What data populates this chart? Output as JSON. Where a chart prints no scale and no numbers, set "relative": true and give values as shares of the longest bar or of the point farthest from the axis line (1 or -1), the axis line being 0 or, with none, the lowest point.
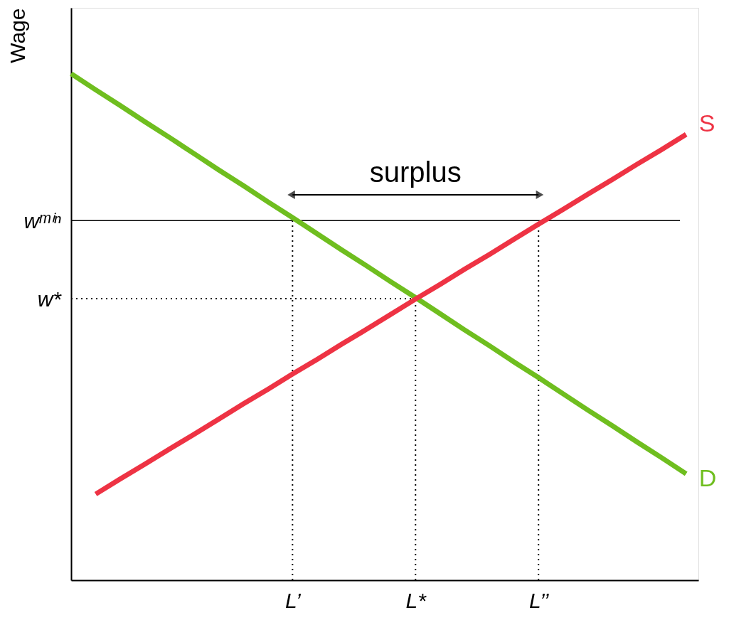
{
  "chart_data": {
    "type": "line",
    "ylabel": "Wage",
    "relative": true,
    "categories": [
      null,
      null,
      null,
      null,
      null,
      null,
      null,
      null,
      null,
      "L’",
      null,
      null,
      null,
      null,
      "L*",
      null,
      null,
      null,
      null,
      "L’’",
      null,
      null,
      null,
      null,
      null,
      null
    ],
    "series": [
      {
        "name": "D",
        "color": "#6fbe1f",
        "line_style": "solid",
        "values": [
          1.0,
          0.968,
          0.937,
          0.905,
          0.874,
          0.842,
          0.81,
          0.779,
          0.747,
          0.716,
          0.684,
          0.652,
          0.621,
          0.589,
          0.558,
          0.526,
          0.494,
          0.463,
          0.431,
          0.4,
          0.368,
          0.336,
          0.305,
          0.273,
          0.242,
          0.21
        ]
      },
      {
        "name": "S",
        "color": "#ee3344",
        "line_style": "solid",
        "values": [
          null,
          0.17,
          0.2,
          0.229,
          0.259,
          0.288,
          0.318,
          0.348,
          0.377,
          0.407,
          0.436,
          0.466,
          0.495,
          0.525,
          0.555,
          0.584,
          0.614,
          0.643,
          0.673,
          0.703,
          0.732,
          0.762,
          0.791,
          0.821,
          0.85,
          0.88
        ]
      }
    ],
    "ref_lines": [
      {
        "axis": "y",
        "value": 0.71,
        "label": "wᵐⁱⁿ",
        "color": "#000000",
        "line_style": "solid"
      },
      {
        "axis": "y",
        "value": 0.556,
        "label": "w*",
        "color": "#000000",
        "line_style": "dotted"
      },
      {
        "axis": "x",
        "value": "L’",
        "color": "#000000",
        "line_style": "dotted"
      },
      {
        "axis": "x",
        "value": "L*",
        "color": "#000000",
        "line_style": "dotted"
      },
      {
        "axis": "x",
        "value": "L’’",
        "color": "#000000",
        "line_style": "dotted"
      }
    ],
    "annotations": [
      "surplus"
    ],
    "grid": false,
    "legend": false,
    "marker": "none"
  }
}
